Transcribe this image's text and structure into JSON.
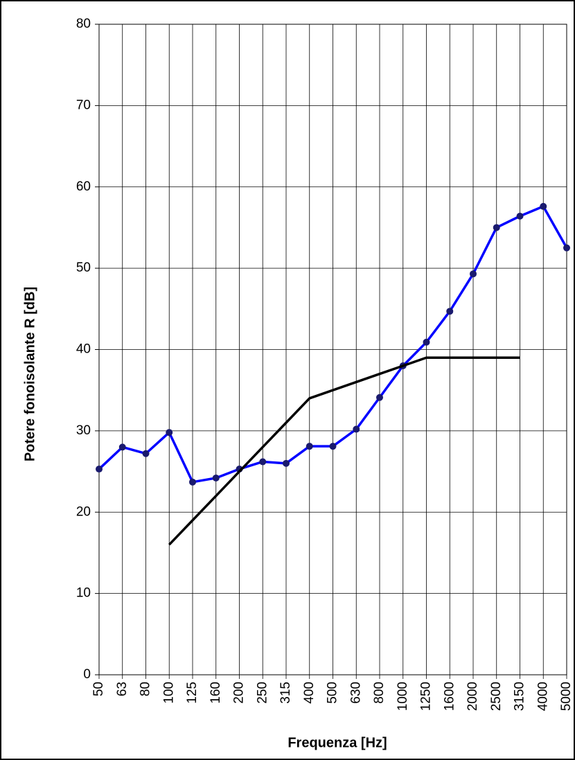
{
  "chart_data": {
    "type": "line",
    "x_label": "Frequenza [Hz]",
    "y_label": "Potere fonoisolante R [dB]",
    "categories": [
      "50",
      "63",
      "80",
      "100",
      "125",
      "160",
      "200",
      "250",
      "315",
      "400",
      "500",
      "630",
      "800",
      "1000",
      "1250",
      "1600",
      "2000",
      "2500",
      "3150",
      "4000",
      "5000"
    ],
    "series": [
      {
        "color": "#0000ff",
        "marker_color": "#1a1a6e",
        "values": [
          25.3,
          28.0,
          27.2,
          29.8,
          23.7,
          24.2,
          25.3,
          26.2,
          26.0,
          28.1,
          28.1,
          30.2,
          34.1,
          38.0,
          40.9,
          44.7,
          49.3,
          55.0,
          56.4,
          57.6,
          52.5
        ]
      },
      {
        "color": "#000000",
        "values": [
          null,
          null,
          null,
          16,
          19,
          22,
          25,
          28,
          31,
          34,
          35,
          36,
          37,
          38,
          39,
          39,
          39,
          39,
          39,
          null,
          null
        ]
      }
    ],
    "ylim": [
      0,
      80
    ],
    "yticks": [
      0,
      10,
      20,
      30,
      40,
      50,
      60,
      70,
      80
    ],
    "grid": true
  }
}
